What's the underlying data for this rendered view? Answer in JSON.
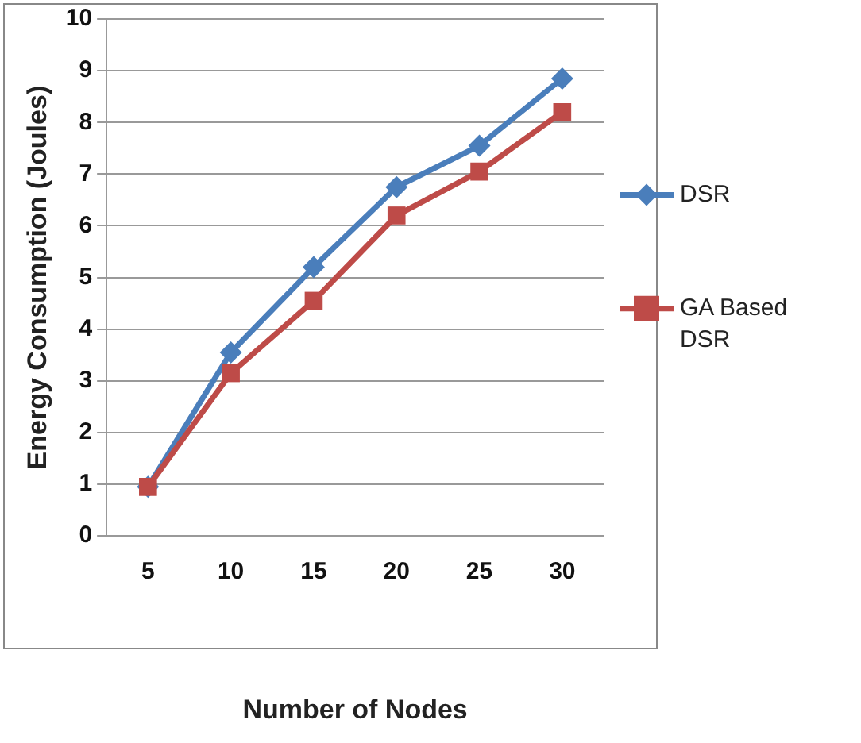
{
  "chart_data": {
    "type": "line",
    "xlabel": "Number of Nodes",
    "ylabel": "Energy Consumption (Joules)",
    "categories": [
      "5",
      "10",
      "15",
      "20",
      "25",
      "30"
    ],
    "ylim": [
      0,
      10
    ],
    "yticks": [
      0,
      1,
      2,
      3,
      4,
      5,
      6,
      7,
      8,
      9,
      10
    ],
    "grid": "y",
    "legend": "right",
    "line_style": "solid",
    "series": [
      {
        "name": "DSR",
        "color": "#4a7ebb",
        "marker": "diamond",
        "values": [
          0.95,
          3.55,
          5.2,
          6.75,
          7.55,
          8.85
        ]
      },
      {
        "name": "GA Based DSR",
        "color": "#be4b48",
        "marker": "square",
        "values": [
          0.95,
          3.15,
          4.55,
          6.2,
          7.05,
          8.2
        ]
      }
    ]
  }
}
